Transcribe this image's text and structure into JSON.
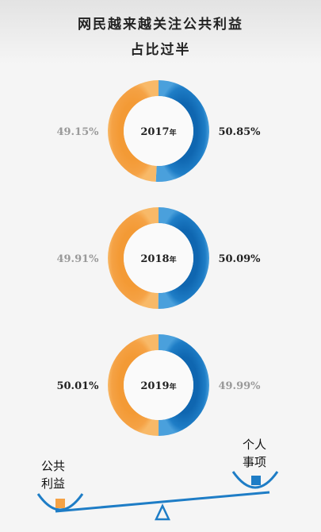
{
  "title_line1": "网民越来越关注公共利益",
  "title_line2": "占比过半",
  "colors": {
    "public": "#f5a245",
    "personal": "#1e7dc6",
    "muted_text": "#9a9a9a",
    "strong_text": "#222222"
  },
  "legend": {
    "public": [
      "公共",
      "利益"
    ],
    "personal": [
      "个人",
      "事项"
    ]
  },
  "chart_data": {
    "type": "pie",
    "series_names": [
      "公共利益",
      "个人事项"
    ],
    "charts": [
      {
        "year": "2017",
        "unit": "年",
        "public": 49.15,
        "personal": 50.85,
        "public_label": "49.15%",
        "personal_label": "50.85%"
      },
      {
        "year": "2018",
        "unit": "年",
        "public": 49.91,
        "personal": 50.09,
        "public_label": "49.91%",
        "personal_label": "50.09%"
      },
      {
        "year": "2019",
        "unit": "年",
        "public": 50.01,
        "personal": 49.99,
        "public_label": "50.01%",
        "personal_label": "49.99%"
      }
    ]
  }
}
